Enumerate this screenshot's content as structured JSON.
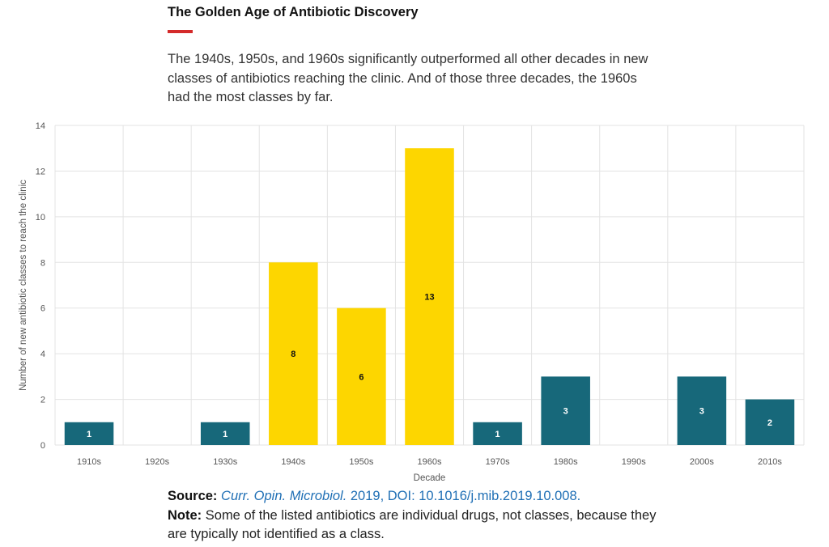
{
  "header": {
    "title": "The Golden Age of Antibiotic Discovery",
    "description": "The 1940s, 1950s, and 1960s significantly outperformed all other decades in new classes of antibiotics reaching the clinic. And of those three decades, the 1960s had the most classes by far."
  },
  "chart_data": {
    "type": "bar",
    "title": "",
    "xlabel": "Decade",
    "ylabel": "Number of new antibiotic classes to reach the clinic",
    "categories": [
      "1910s",
      "1920s",
      "1930s",
      "1940s",
      "1950s",
      "1960s",
      "1970s",
      "1980s",
      "1990s",
      "2000s",
      "2010s"
    ],
    "values": [
      1,
      0,
      1,
      8,
      6,
      13,
      1,
      3,
      0,
      3,
      2
    ],
    "highlight": [
      false,
      false,
      false,
      true,
      true,
      true,
      false,
      false,
      false,
      false,
      false
    ],
    "ylim": [
      0,
      14
    ],
    "yticks": [
      0,
      2,
      4,
      6,
      8,
      10,
      12,
      14
    ],
    "grid": true,
    "data_labels": [
      "1",
      "",
      "1",
      "8",
      "6",
      "13",
      "1",
      "3",
      "",
      "3",
      "2"
    ],
    "colors": {
      "default": "#17687a",
      "highlight": "#fdd600",
      "grid": "#e3e3e3",
      "label_on_default": "#ffffff",
      "label_on_highlight": "#111111"
    }
  },
  "footer": {
    "source_label": "Source:",
    "source_journal": "Curr. Opin. Microbiol.",
    "source_rest": " 2019, DOI: 10.1016/j.mib.2019.10.008.",
    "note_label": "Note:",
    "note_text": " Some of the listed antibiotics are individual drugs, not classes, because they are typically not identified as a class."
  }
}
